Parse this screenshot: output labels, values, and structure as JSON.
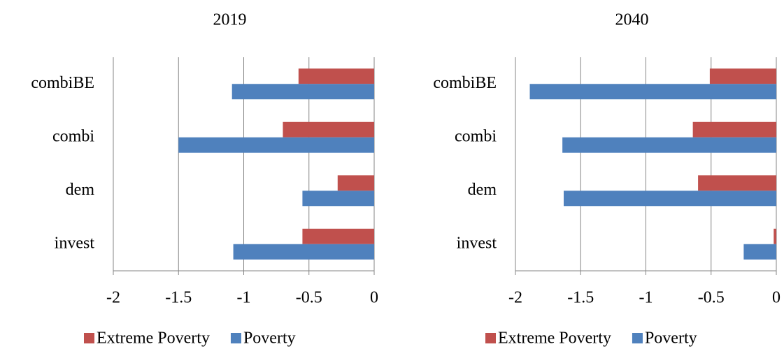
{
  "chart_data": [
    {
      "type": "bar",
      "orientation": "horizontal",
      "title": "2019",
      "categories": [
        "combiBE",
        "combi",
        "dem",
        "invest"
      ],
      "series": [
        {
          "name": "Extreme Poverty",
          "color": "#c0504d",
          "values": [
            -0.58,
            -0.7,
            -0.28,
            -0.55
          ]
        },
        {
          "name": "Poverty",
          "color": "#4f81bd",
          "values": [
            -1.09,
            -1.5,
            -0.55,
            -1.08
          ]
        }
      ],
      "xlim": [
        -2,
        0
      ],
      "xticks": [
        -2,
        -1.5,
        -1,
        -0.5,
        0
      ],
      "grid": true,
      "legend": "bottom"
    },
    {
      "type": "bar",
      "orientation": "horizontal",
      "title": "2040",
      "categories": [
        "combiBE",
        "combi",
        "dem",
        "invest"
      ],
      "series": [
        {
          "name": "Extreme Poverty",
          "color": "#c0504d",
          "values": [
            -0.51,
            -0.64,
            -0.6,
            -0.02
          ]
        },
        {
          "name": "Poverty",
          "color": "#4f81bd",
          "values": [
            -1.89,
            -1.64,
            -1.63,
            -0.25
          ]
        }
      ],
      "xlim": [
        -2,
        0
      ],
      "xticks": [
        -2,
        -1.5,
        -1,
        -0.5,
        0
      ],
      "grid": true,
      "legend": "bottom"
    }
  ]
}
